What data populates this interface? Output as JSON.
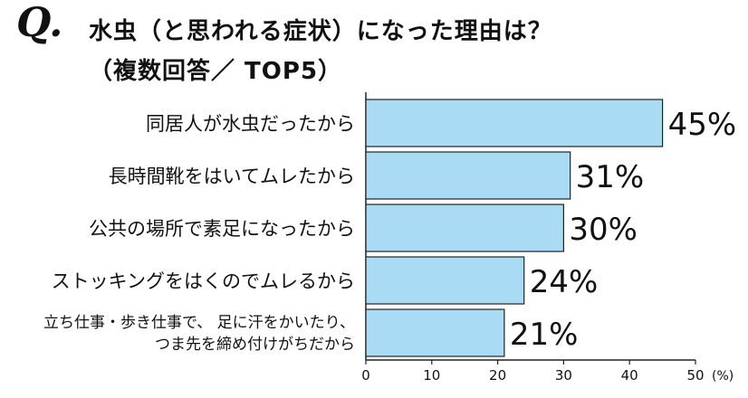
{
  "header": {
    "q_label": "Q.",
    "title": "水虫（と思われる症状）になった理由は？",
    "subtitle": "（複数回答／ TOP5）"
  },
  "chart_data": {
    "type": "bar",
    "orientation": "horizontal",
    "categories": [
      [
        "同居人が水虫だったから"
      ],
      [
        "長時間靴をはいてムレたから"
      ],
      [
        "公共の場所で素足になったから"
      ],
      [
        "ストッキングをはくのでムレるから"
      ],
      [
        "立ち仕事・歩き仕事で、 足に汗をかいたり、",
        "つま先を締め付けがちだから"
      ]
    ],
    "values": [
      45,
      31,
      30,
      24,
      21
    ],
    "value_labels": [
      "45%",
      "31%",
      "30%",
      "24%",
      "21%"
    ],
    "xlim": [
      0,
      50
    ],
    "xticks": [
      0,
      10,
      20,
      30,
      40,
      50
    ],
    "x_unit_label": "(%)",
    "bar_color": "#a9dbf5",
    "bar_edge_color": "#222222",
    "grid": false
  }
}
